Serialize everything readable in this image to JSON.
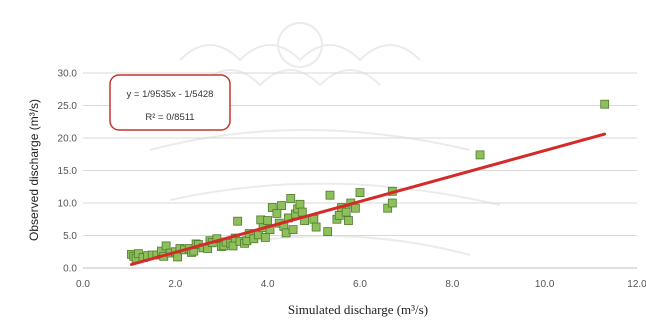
{
  "chart_data": {
    "type": "scatter",
    "xlabel": "Simulated discharge (m³/s)",
    "ylabel": "Observed discharge (m³/s)",
    "xlim": [
      0,
      12
    ],
    "ylim": [
      0,
      30
    ],
    "x_ticks": [
      "0.0",
      "2.0",
      "4.0",
      "6.0",
      "8.0",
      "10.0",
      "12.0"
    ],
    "y_ticks": [
      "0.0",
      "5.0",
      "10.0",
      "15.0",
      "20.0",
      "25.0",
      "30.0"
    ],
    "grid": "horizontal",
    "equation": "y = 1/9535x - 1/5428",
    "r_squared": "R² = 0/8511",
    "marker_color": "#8dbf5a",
    "marker_edge": "#4f7a2e",
    "trendline_color": "#d42a2a",
    "annotation_border": "#c0392b",
    "trendline": {
      "x": [
        1.05,
        11.3
      ],
      "y": [
        0.55,
        20.6
      ]
    },
    "points": [
      [
        1.05,
        2.1
      ],
      [
        1.1,
        1.8
      ],
      [
        1.15,
        1.5
      ],
      [
        1.2,
        2.2
      ],
      [
        1.3,
        1.6
      ],
      [
        1.4,
        1.9
      ],
      [
        1.5,
        2.0
      ],
      [
        1.6,
        2.0
      ],
      [
        1.7,
        2.6
      ],
      [
        1.75,
        1.8
      ],
      [
        1.8,
        3.4
      ],
      [
        1.9,
        2.3
      ],
      [
        2.0,
        2.5
      ],
      [
        2.05,
        1.7
      ],
      [
        2.1,
        3.0
      ],
      [
        2.2,
        2.8
      ],
      [
        2.3,
        3.0
      ],
      [
        2.35,
        2.4
      ],
      [
        2.4,
        2.6
      ],
      [
        2.45,
        3.7
      ],
      [
        2.5,
        3.6
      ],
      [
        2.6,
        3.1
      ],
      [
        2.7,
        3.0
      ],
      [
        2.75,
        4.2
      ],
      [
        2.8,
        3.9
      ],
      [
        2.9,
        4.5
      ],
      [
        3.0,
        3.3
      ],
      [
        3.05,
        3.4
      ],
      [
        3.1,
        4.0
      ],
      [
        3.2,
        3.8
      ],
      [
        3.25,
        3.4
      ],
      [
        3.3,
        4.6
      ],
      [
        3.35,
        7.2
      ],
      [
        3.4,
        4.1
      ],
      [
        3.5,
        3.8
      ],
      [
        3.55,
        4.2
      ],
      [
        3.6,
        5.3
      ],
      [
        3.7,
        4.5
      ],
      [
        3.8,
        5.1
      ],
      [
        3.85,
        7.4
      ],
      [
        3.9,
        6.2
      ],
      [
        3.95,
        4.7
      ],
      [
        4.0,
        7.3
      ],
      [
        4.05,
        5.9
      ],
      [
        4.1,
        9.3
      ],
      [
        4.2,
        8.4
      ],
      [
        4.25,
        6.9
      ],
      [
        4.3,
        9.6
      ],
      [
        4.35,
        6.4
      ],
      [
        4.4,
        5.4
      ],
      [
        4.45,
        7.7
      ],
      [
        4.5,
        10.7
      ],
      [
        4.55,
        5.9
      ],
      [
        4.6,
        8.3
      ],
      [
        4.65,
        9.1
      ],
      [
        4.7,
        9.8
      ],
      [
        4.75,
        8.6
      ],
      [
        4.8,
        7.3
      ],
      [
        5.0,
        7.5
      ],
      [
        5.05,
        6.3
      ],
      [
        5.3,
        5.6
      ],
      [
        5.35,
        11.2
      ],
      [
        5.5,
        7.5
      ],
      [
        5.55,
        8.1
      ],
      [
        5.6,
        9.3
      ],
      [
        5.7,
        8.6
      ],
      [
        5.75,
        7.3
      ],
      [
        5.8,
        10.0
      ],
      [
        5.9,
        9.2
      ],
      [
        6.0,
        11.6
      ],
      [
        6.6,
        9.2
      ],
      [
        6.7,
        11.8
      ],
      [
        6.7,
        10.0
      ],
      [
        8.6,
        17.4
      ],
      [
        11.3,
        25.2
      ]
    ]
  }
}
